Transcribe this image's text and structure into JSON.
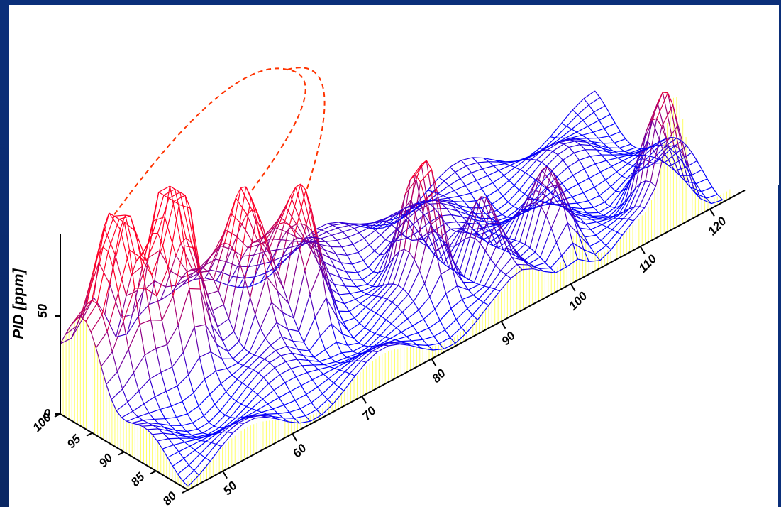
{
  "chart_data": {
    "type": "surface",
    "ylabel": "PID [ppm]",
    "z_ticks": [
      "0",
      "50"
    ],
    "z_range": [
      0,
      100
    ],
    "x_axis_ticks": [
      "50",
      "60",
      "70",
      "80",
      "90",
      "100",
      "110",
      "120"
    ],
    "x_range": [
      45,
      125
    ],
    "y_axis_ticks": [
      "100",
      "95",
      "90",
      "85",
      "80"
    ],
    "y_range": [
      80,
      100
    ],
    "grid": false,
    "colors": {
      "low": "#0000ff",
      "mid": "#800080",
      "high": "#ff0000",
      "curtain": "#ffff66",
      "arrow": "#ff3300",
      "overflow": "#000000"
    },
    "peaks": [
      {
        "x": 50,
        "y": 97,
        "z": 55
      },
      {
        "x": 57,
        "y": 95,
        "z": 68
      },
      {
        "x": 66,
        "y": 93,
        "z": 62
      },
      {
        "x": 72,
        "y": 91,
        "z": 60
      },
      {
        "x": 86,
        "y": 88,
        "z": 65
      },
      {
        "x": 93,
        "y": 86,
        "z": 45
      },
      {
        "x": 101,
        "y": 84,
        "z": 35
      },
      {
        "x": 115,
        "y": 82,
        "z": 55
      }
    ]
  }
}
